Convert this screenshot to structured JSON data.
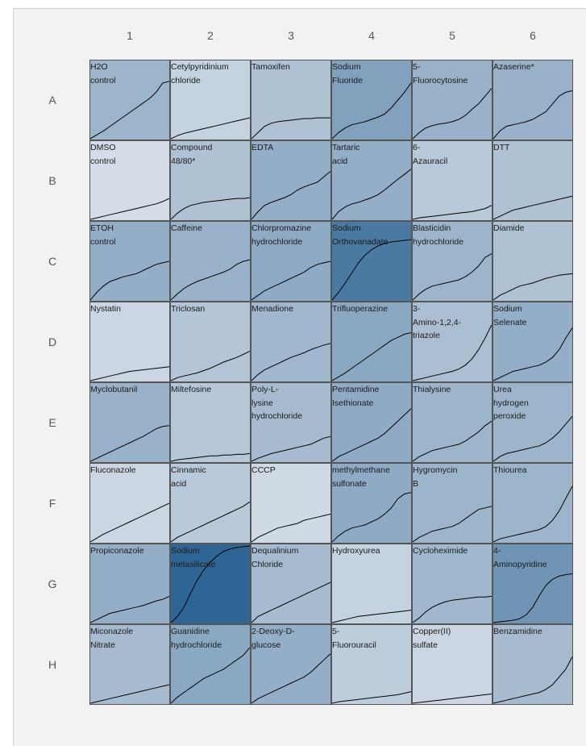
{
  "chart_data": {
    "type": "heatmap",
    "title": "",
    "columns": [
      "1",
      "2",
      "3",
      "4",
      "5",
      "6"
    ],
    "rows": [
      "A",
      "B",
      "C",
      "D",
      "E",
      "F",
      "G",
      "H"
    ],
    "color_scale": {
      "low": "#e6eaf0",
      "high": "#2f6594"
    },
    "cells": [
      {
        "row": "A",
        "col": "1",
        "label": "H2O\ncontrol",
        "intensity": 0.4,
        "curve": [
          0,
          0.05,
          0.1,
          0.16,
          0.22,
          0.28,
          0.34,
          0.4,
          0.46,
          0.52,
          0.6,
          0.72,
          0.74
        ]
      },
      {
        "row": "A",
        "col": "2",
        "label": "Cetylpyridinium\nchloride",
        "intensity": 0.18,
        "curve": [
          0,
          0.04,
          0.07,
          0.09,
          0.11,
          0.13,
          0.15,
          0.17,
          0.19,
          0.21,
          0.23,
          0.25,
          0.27
        ]
      },
      {
        "row": "A",
        "col": "3",
        "label": "Tamoxifen",
        "intensity": 0.3,
        "curve": [
          0,
          0.08,
          0.16,
          0.2,
          0.22,
          0.23,
          0.24,
          0.25,
          0.26,
          0.26,
          0.27,
          0.27,
          0.27
        ]
      },
      {
        "row": "A",
        "col": "4",
        "label": "Sodium\nFluoride",
        "intensity": 0.55,
        "curve": [
          0,
          0.08,
          0.14,
          0.18,
          0.2,
          0.22,
          0.25,
          0.28,
          0.32,
          0.4,
          0.5,
          0.6,
          0.72
        ]
      },
      {
        "row": "A",
        "col": "5",
        "label": "5-\nFluorocytosine",
        "intensity": 0.42,
        "curve": [
          0,
          0.08,
          0.14,
          0.17,
          0.19,
          0.2,
          0.22,
          0.25,
          0.3,
          0.38,
          0.45,
          0.55,
          0.65
        ]
      },
      {
        "row": "A",
        "col": "6",
        "label": "Azaserine*",
        "intensity": 0.42,
        "curve": [
          0,
          0.1,
          0.16,
          0.18,
          0.2,
          0.22,
          0.25,
          0.3,
          0.35,
          0.45,
          0.55,
          0.6,
          0.62
        ]
      },
      {
        "row": "B",
        "col": "1",
        "label": "DMSO\ncontrol",
        "intensity": 0.1,
        "curve": [
          0,
          0.02,
          0.04,
          0.06,
          0.08,
          0.1,
          0.12,
          0.14,
          0.16,
          0.18,
          0.2,
          0.23,
          0.27
        ]
      },
      {
        "row": "B",
        "col": "2",
        "label": "Compound\n48/80*",
        "intensity": 0.3,
        "curve": [
          0,
          0.08,
          0.14,
          0.18,
          0.2,
          0.22,
          0.23,
          0.24,
          0.25,
          0.26,
          0.27,
          0.27,
          0.28
        ]
      },
      {
        "row": "B",
        "col": "3",
        "label": "EDTA",
        "intensity": 0.45,
        "curve": [
          0,
          0.1,
          0.18,
          0.22,
          0.25,
          0.28,
          0.32,
          0.38,
          0.42,
          0.45,
          0.48,
          0.55,
          0.62
        ]
      },
      {
        "row": "B",
        "col": "4",
        "label": "Tartaric\nacid",
        "intensity": 0.45,
        "curve": [
          0,
          0.1,
          0.16,
          0.2,
          0.22,
          0.25,
          0.28,
          0.32,
          0.38,
          0.45,
          0.52,
          0.58,
          0.65
        ]
      },
      {
        "row": "B",
        "col": "5",
        "label": "6-\nAzauracil",
        "intensity": 0.25,
        "curve": [
          0,
          0.02,
          0.03,
          0.04,
          0.05,
          0.06,
          0.07,
          0.08,
          0.09,
          0.1,
          0.12,
          0.14,
          0.18
        ]
      },
      {
        "row": "B",
        "col": "6",
        "label": "DTT",
        "intensity": 0.3,
        "curve": [
          0,
          0.04,
          0.08,
          0.12,
          0.14,
          0.16,
          0.18,
          0.2,
          0.22,
          0.24,
          0.26,
          0.28,
          0.3
        ]
      },
      {
        "row": "C",
        "col": "1",
        "label": "ETOH\ncontrol",
        "intensity": 0.45,
        "curve": [
          0,
          0.1,
          0.18,
          0.24,
          0.27,
          0.3,
          0.32,
          0.34,
          0.38,
          0.42,
          0.46,
          0.48,
          0.5
        ]
      },
      {
        "row": "C",
        "col": "2",
        "label": "Caffeine",
        "intensity": 0.42,
        "curve": [
          0,
          0.08,
          0.15,
          0.2,
          0.24,
          0.27,
          0.3,
          0.33,
          0.36,
          0.4,
          0.46,
          0.5,
          0.52
        ]
      },
      {
        "row": "C",
        "col": "3",
        "label": "Chlorpromazine\nhydrochloride",
        "intensity": 0.48,
        "curve": [
          0,
          0.06,
          0.12,
          0.16,
          0.2,
          0.24,
          0.28,
          0.32,
          0.36,
          0.42,
          0.46,
          0.48,
          0.5
        ]
      },
      {
        "row": "C",
        "col": "4",
        "label": "Sodium\nOrthovanadate",
        "intensity": 0.85,
        "curve": [
          0,
          0.1,
          0.22,
          0.35,
          0.48,
          0.58,
          0.65,
          0.7,
          0.73,
          0.75,
          0.76,
          0.77,
          0.78
        ]
      },
      {
        "row": "C",
        "col": "5",
        "label": "Blasticidin\nhydrochloride",
        "intensity": 0.4,
        "curve": [
          0,
          0.08,
          0.14,
          0.18,
          0.2,
          0.22,
          0.24,
          0.26,
          0.3,
          0.36,
          0.44,
          0.55,
          0.6
        ]
      },
      {
        "row": "C",
        "col": "6",
        "label": "Diamide",
        "intensity": 0.3,
        "curve": [
          0,
          0.06,
          0.1,
          0.14,
          0.18,
          0.2,
          0.22,
          0.25,
          0.28,
          0.3,
          0.32,
          0.33,
          0.34
        ]
      },
      {
        "row": "D",
        "col": "1",
        "label": "Nystatin",
        "intensity": 0.15,
        "curve": [
          0,
          0.02,
          0.04,
          0.06,
          0.08,
          0.1,
          0.12,
          0.13,
          0.14,
          0.15,
          0.16,
          0.17,
          0.18
        ]
      },
      {
        "row": "D",
        "col": "2",
        "label": "Triclosan",
        "intensity": 0.28,
        "curve": [
          0,
          0.04,
          0.06,
          0.08,
          0.1,
          0.13,
          0.16,
          0.2,
          0.24,
          0.27,
          0.3,
          0.34,
          0.38
        ]
      },
      {
        "row": "D",
        "col": "3",
        "label": "Menadione",
        "intensity": 0.38,
        "curve": [
          0,
          0.08,
          0.14,
          0.18,
          0.22,
          0.26,
          0.3,
          0.33,
          0.36,
          0.4,
          0.43,
          0.46,
          0.48
        ]
      },
      {
        "row": "D",
        "col": "4",
        "label": "Trifluoperazine",
        "intensity": 0.5,
        "curve": [
          0,
          0.05,
          0.1,
          0.16,
          0.22,
          0.28,
          0.34,
          0.4,
          0.46,
          0.52,
          0.56,
          0.6,
          0.62
        ]
      },
      {
        "row": "D",
        "col": "5",
        "label": "3-\nAmino-1,2,4-\ntriazole",
        "intensity": 0.32,
        "curve": [
          0,
          0.02,
          0.04,
          0.06,
          0.08,
          0.1,
          0.12,
          0.15,
          0.2,
          0.28,
          0.4,
          0.55,
          0.72
        ]
      },
      {
        "row": "D",
        "col": "6",
        "label": "Sodium\nSelenate",
        "intensity": 0.45,
        "curve": [
          0,
          0.04,
          0.08,
          0.12,
          0.14,
          0.16,
          0.18,
          0.2,
          0.24,
          0.3,
          0.4,
          0.55,
          0.68
        ]
      },
      {
        "row": "E",
        "col": "1",
        "label": "Myclobutanil",
        "intensity": 0.42,
        "curve": [
          0,
          0.04,
          0.08,
          0.12,
          0.16,
          0.2,
          0.24,
          0.28,
          0.32,
          0.37,
          0.42,
          0.45,
          0.46
        ]
      },
      {
        "row": "E",
        "col": "2",
        "label": "Miltefosine",
        "intensity": 0.26,
        "curve": [
          0,
          0.02,
          0.03,
          0.04,
          0.05,
          0.06,
          0.07,
          0.07,
          0.08,
          0.08,
          0.09,
          0.09,
          0.1
        ]
      },
      {
        "row": "E",
        "col": "3",
        "label": "Poly-L-\nlysine\nhydrochloride",
        "intensity": 0.35,
        "curve": [
          0,
          0.04,
          0.07,
          0.1,
          0.12,
          0.14,
          0.16,
          0.18,
          0.2,
          0.22,
          0.26,
          0.3,
          0.32
        ]
      },
      {
        "row": "E",
        "col": "4",
        "label": "Pentamidine\nIsethionate",
        "intensity": 0.48,
        "curve": [
          0,
          0.06,
          0.1,
          0.14,
          0.18,
          0.22,
          0.26,
          0.3,
          0.36,
          0.44,
          0.52,
          0.6,
          0.68
        ]
      },
      {
        "row": "E",
        "col": "5",
        "label": "Thialysine",
        "intensity": 0.4,
        "curve": [
          0,
          0.06,
          0.1,
          0.14,
          0.16,
          0.18,
          0.2,
          0.22,
          0.26,
          0.32,
          0.38,
          0.46,
          0.52
        ]
      },
      {
        "row": "E",
        "col": "6",
        "label": "Urea\nhydrogen\nperoxide",
        "intensity": 0.4,
        "curve": [
          0,
          0.06,
          0.1,
          0.12,
          0.14,
          0.16,
          0.18,
          0.2,
          0.24,
          0.3,
          0.38,
          0.48,
          0.58
        ]
      },
      {
        "row": "F",
        "col": "1",
        "label": "Fluconazole",
        "intensity": 0.15,
        "curve": [
          0,
          0.05,
          0.1,
          0.14,
          0.18,
          0.22,
          0.26,
          0.3,
          0.34,
          0.38,
          0.42,
          0.46,
          0.5
        ]
      },
      {
        "row": "F",
        "col": "2",
        "label": "Cinnamic\nacid",
        "intensity": 0.25,
        "curve": [
          0,
          0.06,
          0.1,
          0.14,
          0.18,
          0.22,
          0.26,
          0.3,
          0.34,
          0.38,
          0.42,
          0.46,
          0.52
        ]
      },
      {
        "row": "F",
        "col": "3",
        "label": "CCCP",
        "intensity": 0.12,
        "curve": [
          0,
          0.06,
          0.1,
          0.14,
          0.18,
          0.2,
          0.22,
          0.24,
          0.28,
          0.3,
          0.32,
          0.34,
          0.36
        ]
      },
      {
        "row": "F",
        "col": "4",
        "label": "methylmethane\nsulfonate",
        "intensity": 0.48,
        "curve": [
          0,
          0.08,
          0.14,
          0.18,
          0.2,
          0.22,
          0.26,
          0.3,
          0.36,
          0.44,
          0.56,
          0.62,
          0.64
        ]
      },
      {
        "row": "F",
        "col": "5",
        "label": "Hygromycin\nB",
        "intensity": 0.4,
        "curve": [
          0,
          0.06,
          0.1,
          0.14,
          0.16,
          0.18,
          0.2,
          0.24,
          0.3,
          0.36,
          0.42,
          0.44,
          0.46
        ]
      },
      {
        "row": "F",
        "col": "6",
        "label": "Thiourea",
        "intensity": 0.4,
        "curve": [
          0,
          0.04,
          0.06,
          0.08,
          0.1,
          0.12,
          0.14,
          0.16,
          0.2,
          0.28,
          0.4,
          0.56,
          0.72
        ]
      },
      {
        "row": "G",
        "col": "1",
        "label": "Propiconazole",
        "intensity": 0.45,
        "curve": [
          0,
          0.04,
          0.08,
          0.12,
          0.14,
          0.16,
          0.18,
          0.2,
          0.22,
          0.25,
          0.28,
          0.3,
          0.34
        ]
      },
      {
        "row": "G",
        "col": "2",
        "label": "Sodium\nmetasilicate",
        "intensity": 1.0,
        "curve": [
          0,
          0.08,
          0.2,
          0.38,
          0.55,
          0.68,
          0.78,
          0.86,
          0.92,
          0.95,
          0.97,
          0.98,
          0.99
        ]
      },
      {
        "row": "G",
        "col": "3",
        "label": "Dequalinium\nChloride",
        "intensity": 0.35,
        "curve": [
          0,
          0.08,
          0.12,
          0.16,
          0.2,
          0.24,
          0.28,
          0.32,
          0.36,
          0.4,
          0.44,
          0.48,
          0.52
        ]
      },
      {
        "row": "G",
        "col": "4",
        "label": "Hydroxyurea",
        "intensity": 0.18,
        "curve": [
          0,
          0.02,
          0.04,
          0.06,
          0.08,
          0.09,
          0.1,
          0.11,
          0.12,
          0.13,
          0.14,
          0.15,
          0.16
        ]
      },
      {
        "row": "G",
        "col": "5",
        "label": "Cycloheximide",
        "intensity": 0.38,
        "curve": [
          0,
          0.06,
          0.14,
          0.2,
          0.24,
          0.27,
          0.29,
          0.3,
          0.31,
          0.32,
          0.33,
          0.33,
          0.34
        ]
      },
      {
        "row": "G",
        "col": "6",
        "label": "4-\nAminopyridine",
        "intensity": 0.65,
        "curve": [
          0,
          0.01,
          0.02,
          0.03,
          0.05,
          0.1,
          0.2,
          0.35,
          0.48,
          0.56,
          0.6,
          0.62,
          0.63
        ]
      },
      {
        "row": "H",
        "col": "1",
        "label": "Miconazole\nNitrate",
        "intensity": 0.35,
        "curve": [
          0,
          0.02,
          0.04,
          0.06,
          0.08,
          0.1,
          0.12,
          0.14,
          0.16,
          0.18,
          0.2,
          0.22,
          0.24
        ]
      },
      {
        "row": "H",
        "col": "2",
        "label": "Guanidine\nhydrochloride",
        "intensity": 0.5,
        "curve": [
          0,
          0.08,
          0.14,
          0.2,
          0.26,
          0.32,
          0.36,
          0.4,
          0.44,
          0.5,
          0.56,
          0.62,
          0.72
        ]
      },
      {
        "row": "H",
        "col": "3",
        "label": "2-Deoxy-D-\nglucose",
        "intensity": 0.45,
        "curve": [
          0,
          0.06,
          0.1,
          0.14,
          0.18,
          0.22,
          0.26,
          0.3,
          0.34,
          0.4,
          0.48,
          0.56,
          0.64
        ]
      },
      {
        "row": "H",
        "col": "4",
        "label": "5-\nFluorouracil",
        "intensity": 0.22,
        "curve": [
          0,
          0.02,
          0.03,
          0.04,
          0.05,
          0.06,
          0.07,
          0.08,
          0.09,
          0.1,
          0.11,
          0.13,
          0.15
        ]
      },
      {
        "row": "H",
        "col": "5",
        "label": "Copper(II)\nsulfate",
        "intensity": 0.15,
        "curve": [
          0,
          0.01,
          0.02,
          0.03,
          0.04,
          0.05,
          0.06,
          0.07,
          0.08,
          0.09,
          0.1,
          0.11,
          0.12
        ]
      },
      {
        "row": "H",
        "col": "6",
        "label": "Benzamidine",
        "intensity": 0.35,
        "curve": [
          0,
          0.02,
          0.04,
          0.06,
          0.08,
          0.1,
          0.12,
          0.14,
          0.18,
          0.24,
          0.34,
          0.44,
          0.6
        ]
      }
    ]
  }
}
